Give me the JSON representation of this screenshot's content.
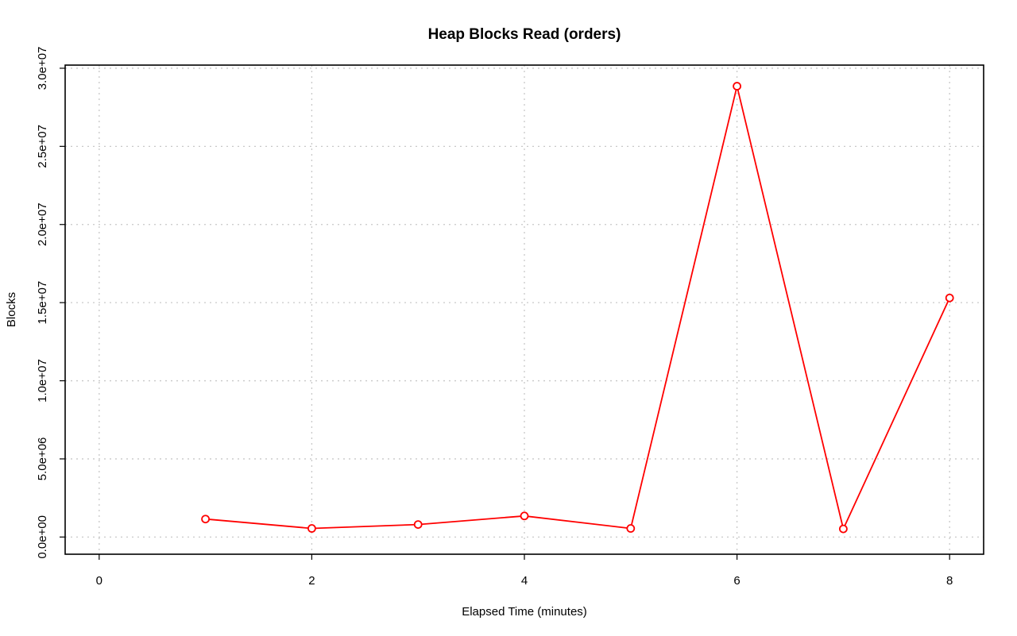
{
  "chart_data": {
    "type": "line",
    "title": "Heap Blocks Read (orders)",
    "xlabel": "Elapsed Time (minutes)",
    "ylabel": "Blocks",
    "xlim": [
      -0.32,
      8.32
    ],
    "ylim": [
      -1100000,
      30200000
    ],
    "x_ticks": [
      0,
      2,
      4,
      6,
      8
    ],
    "x_tick_labels": [
      "0",
      "2",
      "4",
      "6",
      "8"
    ],
    "y_ticks": [
      0,
      5000000,
      10000000,
      15000000,
      20000000,
      25000000,
      30000000
    ],
    "y_tick_labels": [
      "0.0e+00",
      "5.0e+06",
      "1.0e+07",
      "1.5e+07",
      "2.0e+07",
      "2.5e+07",
      "3.0e+07"
    ],
    "grid": true,
    "series": [
      {
        "color": "#ff0000",
        "x": [
          1,
          2,
          3,
          4,
          5,
          6,
          7,
          8
        ],
        "values": [
          1150000,
          550000,
          800000,
          1350000,
          550000,
          28850000,
          520000,
          15300000
        ]
      }
    ]
  }
}
